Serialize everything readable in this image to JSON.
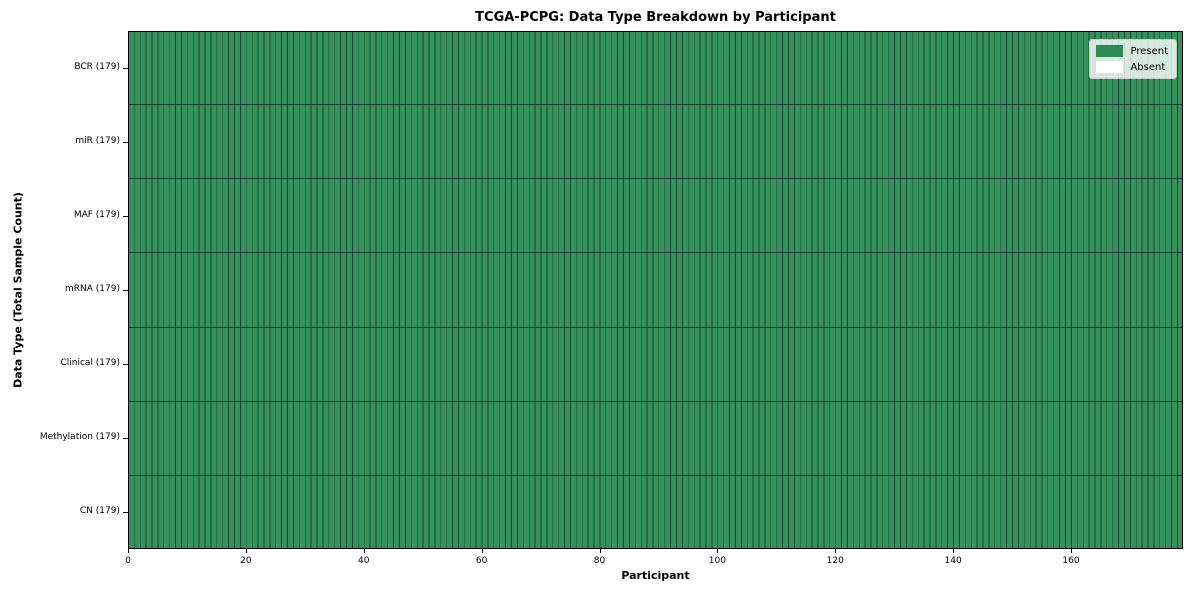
{
  "chart_data": {
    "type": "heatmap",
    "title": "TCGA-PCPG: Data Type Breakdown by Participant",
    "xlabel": "Participant",
    "ylabel": "Data Type (Total Sample Count)",
    "n_participants": 179,
    "x_range": [
      0,
      179
    ],
    "x_ticks": [
      0,
      20,
      40,
      60,
      80,
      100,
      120,
      140,
      160
    ],
    "rows": [
      {
        "label": "BCR (179)",
        "data_type": "BCR",
        "total": 179,
        "present": 179,
        "absent": 0
      },
      {
        "label": "miR (179)",
        "data_type": "miR",
        "total": 179,
        "present": 179,
        "absent": 0
      },
      {
        "label": "MAF (179)",
        "data_type": "MAF",
        "total": 179,
        "present": 179,
        "absent": 0
      },
      {
        "label": "mRNA (179)",
        "data_type": "mRNA",
        "total": 179,
        "present": 179,
        "absent": 0
      },
      {
        "label": "Clinical (179)",
        "data_type": "Clinical",
        "total": 179,
        "present": 179,
        "absent": 0
      },
      {
        "label": "Methylation (179)",
        "data_type": "Methylation",
        "total": 179,
        "present": 179,
        "absent": 0
      },
      {
        "label": "CN (179)",
        "data_type": "CN",
        "total": 179,
        "present": 179,
        "absent": 0
      }
    ],
    "legend": [
      {
        "label": "Present",
        "color": "#2e8b57"
      },
      {
        "label": "Absent",
        "color": "#ffffff"
      }
    ],
    "legend_position": "upper right",
    "colors": {
      "present_cell": "#35915d",
      "absent_cell": "#ffffff",
      "cell_edge": "rgba(0,0,0,0.5)",
      "row_divider": "rgba(0,0,0,0.55)",
      "axes_frame": "#000000"
    },
    "grid": "cell-edges",
    "note": "every cell in all 7 rows is Present (179 of 179 participants per data type)"
  }
}
